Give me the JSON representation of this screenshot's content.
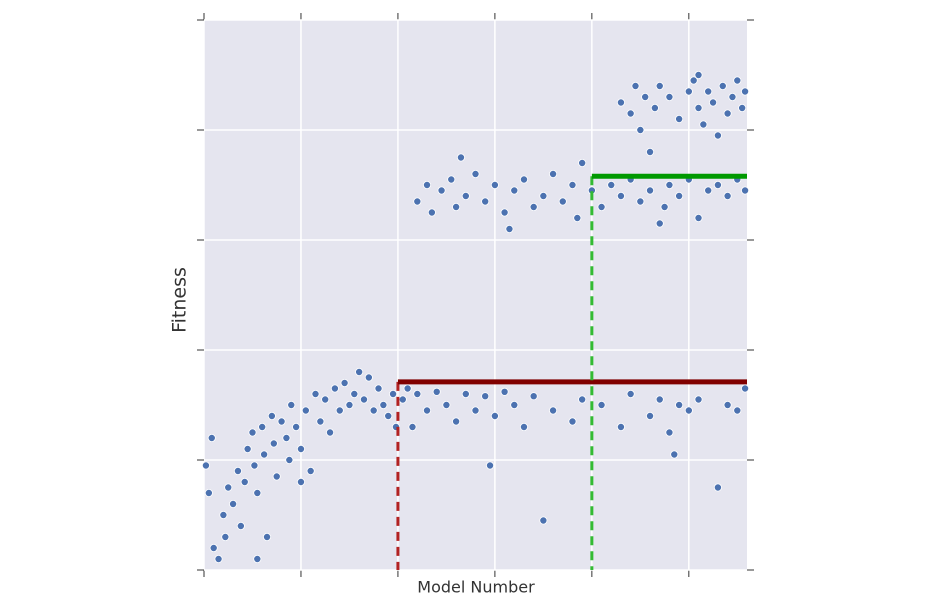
{
  "chart_data": {
    "type": "scatter",
    "ylabel": "Fitness",
    "xlabel": "Model Number",
    "xlim": [
      0,
      5.6
    ],
    "ylim": [
      0,
      5
    ],
    "xticks": [
      0,
      1,
      2,
      3,
      4,
      5
    ],
    "yticks": [
      0,
      1,
      2,
      3,
      4,
      5
    ],
    "grid": true,
    "series": [
      {
        "color": "#4c72b0",
        "x": [
          0.02,
          0.05,
          0.08,
          0.1,
          0.15,
          0.2,
          0.22,
          0.25,
          0.3,
          0.35,
          0.38,
          0.42,
          0.45,
          0.5,
          0.52,
          0.55,
          0.6,
          0.62,
          0.65,
          0.7,
          0.72,
          0.75,
          0.8,
          0.85,
          0.88,
          0.9,
          0.95,
          1.0,
          1.05,
          1.1,
          1.15,
          1.2,
          1.25,
          1.3,
          1.35,
          1.4,
          1.45,
          1.5,
          1.55,
          1.6,
          1.65,
          1.7,
          1.75,
          1.8,
          1.85,
          1.9,
          1.95,
          1.98,
          0.55,
          1.0,
          2.05,
          2.1,
          2.15,
          2.2,
          2.3,
          2.4,
          2.5,
          2.6,
          2.7,
          2.8,
          2.9,
          2.95,
          3.0,
          3.1,
          3.2,
          3.5,
          3.3,
          3.4,
          3.6,
          3.8,
          3.9,
          4.1,
          4.3,
          4.4,
          4.6,
          4.7,
          4.8,
          4.85,
          4.9,
          5.0,
          5.1,
          5.3,
          5.4,
          5.5,
          5.58,
          2.2,
          2.3,
          2.35,
          2.45,
          2.55,
          2.6,
          2.7,
          2.8,
          2.9,
          3.0,
          3.1,
          3.2,
          3.3,
          3.4,
          3.5,
          3.6,
          3.7,
          3.8,
          3.85,
          3.9,
          4.0,
          4.1,
          4.2,
          4.3,
          4.4,
          4.5,
          4.6,
          4.7,
          4.75,
          4.8,
          4.9,
          5.0,
          5.1,
          5.2,
          5.3,
          5.4,
          5.5,
          5.58,
          2.65,
          3.15,
          4.3,
          4.4,
          4.45,
          4.5,
          4.55,
          4.65,
          4.7,
          4.8,
          4.9,
          5.0,
          5.05,
          5.1,
          5.15,
          5.2,
          5.25,
          5.3,
          5.35,
          5.4,
          5.45,
          5.5,
          5.55,
          5.58,
          4.6,
          5.1
        ],
        "values": [
          0.95,
          0.7,
          1.2,
          0.2,
          0.1,
          0.5,
          0.3,
          0.75,
          0.6,
          0.9,
          0.4,
          0.8,
          1.1,
          1.25,
          0.95,
          0.7,
          1.3,
          1.05,
          0.3,
          1.4,
          1.15,
          0.85,
          1.35,
          1.2,
          1.0,
          1.5,
          1.3,
          1.1,
          1.45,
          0.9,
          1.6,
          1.35,
          1.55,
          1.25,
          1.65,
          1.45,
          1.7,
          1.5,
          1.6,
          1.8,
          1.55,
          1.75,
          1.45,
          1.65,
          1.5,
          1.4,
          1.6,
          1.3,
          0.1,
          0.8,
          1.55,
          1.65,
          1.3,
          1.6,
          1.45,
          1.62,
          1.5,
          1.35,
          1.6,
          1.45,
          1.58,
          0.95,
          1.4,
          1.62,
          1.5,
          0.45,
          1.3,
          1.58,
          1.45,
          1.35,
          1.55,
          1.5,
          1.3,
          1.6,
          1.4,
          1.55,
          1.25,
          1.05,
          1.5,
          1.45,
          1.55,
          0.75,
          1.5,
          1.45,
          1.65,
          3.35,
          3.5,
          3.25,
          3.45,
          3.55,
          3.3,
          3.4,
          3.6,
          3.35,
          3.5,
          3.25,
          3.45,
          3.55,
          3.3,
          3.4,
          3.6,
          3.35,
          3.5,
          3.2,
          3.7,
          3.45,
          3.3,
          3.5,
          3.4,
          3.55,
          3.35,
          3.45,
          3.15,
          3.3,
          3.5,
          3.4,
          3.55,
          3.2,
          3.45,
          3.5,
          3.4,
          3.55,
          3.45,
          3.75,
          3.1,
          4.25,
          4.15,
          4.4,
          4.0,
          4.3,
          4.2,
          4.4,
          4.3,
          4.1,
          4.35,
          4.45,
          4.2,
          4.05,
          4.35,
          4.25,
          3.95,
          4.4,
          4.15,
          4.3,
          4.45,
          4.2,
          4.35,
          3.8,
          4.5
        ]
      }
    ],
    "reference_lines": [
      {
        "x": 2,
        "y": 1.71,
        "color": "#800000",
        "dash_color": "#b22222"
      },
      {
        "x": 4,
        "y": 3.58,
        "color": "#009900",
        "dash_color": "#33bb33"
      }
    ]
  }
}
